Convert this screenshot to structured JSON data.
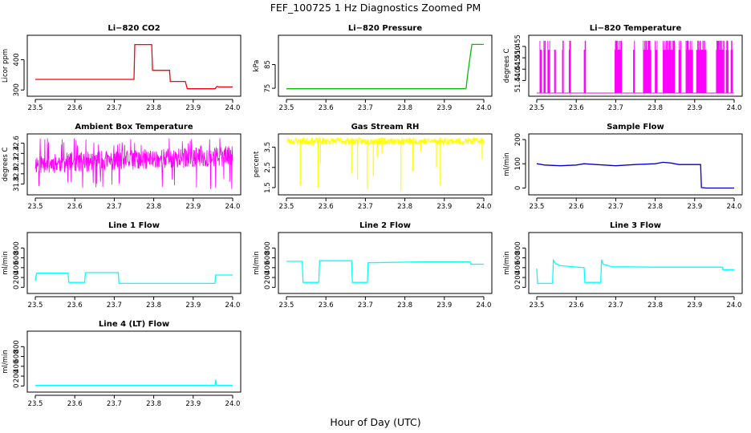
{
  "figure": {
    "title": "FEF_100725  1 Hz Diagnostics Zoomed PM",
    "xlabel": "Hour of Day (UTC)"
  },
  "chart_data": [
    {
      "type": "line",
      "title": "Li−820 CO2",
      "ylabel": "Licor ppm",
      "color": "#ff0000",
      "xlim": [
        23.5,
        24.0
      ],
      "ylim": [
        290,
        470
      ],
      "xticks": [
        "23.5",
        "23.6",
        "23.7",
        "23.8",
        "23.9",
        "24.0"
      ],
      "yticks": [
        300,
        400
      ],
      "series": [
        {
          "name": "CO2",
          "x": [
            23.5,
            23.75,
            23.752,
            23.795,
            23.797,
            23.84,
            23.842,
            23.88,
            23.885,
            23.955,
            23.958,
            23.96,
            23.965,
            24.0
          ],
          "y": [
            335,
            335,
            450,
            450,
            365,
            365,
            328,
            328,
            304,
            304,
            308,
            312,
            310,
            310
          ]
        }
      ]
    },
    {
      "type": "line",
      "title": "Li−820 Pressure",
      "ylabel": "kPa",
      "color": "#00c000",
      "xlim": [
        23.5,
        24.0
      ],
      "ylim": [
        73,
        96
      ],
      "xticks": [
        "23.5",
        "23.6",
        "23.7",
        "23.8",
        "23.9",
        "24.0"
      ],
      "yticks": [
        75,
        85
      ],
      "series": [
        {
          "name": "Pressure",
          "x": [
            23.5,
            23.95,
            23.955,
            23.96,
            23.965,
            23.97,
            24.0
          ],
          "y": [
            74.8,
            74.8,
            75,
            82,
            88,
            93.5,
            93.5
          ]
        }
      ]
    },
    {
      "type": "line",
      "title": "Li−820 Temperature",
      "ylabel": "degrees C",
      "color": "#ff00ff",
      "xlim": [
        23.5,
        24.0
      ],
      "ylim": [
        51.4345,
        51.4585
      ],
      "xticks": [
        "23.5",
        "23.6",
        "23.7",
        "23.8",
        "23.9",
        "24.0"
      ],
      "yticks": [
        51.44,
        51.445,
        51.45,
        51.455
      ],
      "ytick_labels": [
        "51.440",
        "51.445",
        "51.450",
        "51.455"
      ],
      "low": 51.4345,
      "high": 51.4575,
      "high_ranges": [
        [
          23.508,
          23.512
        ],
        [
          23.518,
          23.522
        ],
        [
          23.528,
          23.534
        ],
        [
          23.545,
          23.548
        ],
        [
          23.565,
          23.568
        ],
        [
          23.582,
          23.586
        ],
        [
          23.62,
          23.624
        ],
        [
          23.698,
          23.715
        ],
        [
          23.745,
          23.748
        ],
        [
          23.77,
          23.79
        ],
        [
          23.8,
          23.805
        ],
        [
          23.82,
          23.85
        ],
        [
          23.86,
          23.865
        ],
        [
          23.878,
          23.895
        ],
        [
          23.905,
          23.93
        ],
        [
          23.955,
          23.975
        ],
        [
          23.98,
          23.985
        ],
        [
          23.992,
          23.996
        ]
      ]
    },
    {
      "type": "line",
      "title": "Ambient Box Temperature",
      "ylabel": "degrees C",
      "color": "#ff00ff",
      "xlim": [
        23.5,
        24.0
      ],
      "ylim": [
        31.65,
        32.72
      ],
      "xticks": [
        "23.5",
        "23.6",
        "23.7",
        "23.8",
        "23.9",
        "24.0"
      ],
      "yticks": [
        31.8,
        32.0,
        32.2,
        32.4,
        32.6
      ],
      "ytick_labels": [
        "31.8",
        "32.0",
        "32.2",
        "32.4",
        "32.6"
      ],
      "noise": {
        "base_start": 32.2,
        "base_end": 32.35,
        "amp": 0.2,
        "spikes_low": 31.7,
        "spikes_high": 32.7
      }
    },
    {
      "type": "line",
      "title": "Gas Stream RH",
      "ylabel": "percent",
      "color": "#ffff00",
      "xlim": [
        23.5,
        24.0
      ],
      "ylim": [
        1.3,
        4.0
      ],
      "xticks": [
        "23.5",
        "23.6",
        "23.7",
        "23.8",
        "23.9",
        "24.0"
      ],
      "yticks": [
        1.5,
        2.5,
        3.5
      ],
      "ytick_labels": [
        "1.5",
        "2.5",
        "3.5"
      ],
      "base": 3.8,
      "dips": [
        [
          23.535,
          1.6
        ],
        [
          23.58,
          1.5
        ],
        [
          23.586,
          2.7
        ],
        [
          23.665,
          2.2
        ],
        [
          23.68,
          1.9
        ],
        [
          23.705,
          1.4
        ],
        [
          23.72,
          2.1
        ],
        [
          23.73,
          3.0
        ],
        [
          23.742,
          3.2
        ],
        [
          23.79,
          1.35
        ],
        [
          23.82,
          2.3
        ],
        [
          23.84,
          3.3
        ],
        [
          23.88,
          2.5
        ],
        [
          23.89,
          1.6
        ],
        [
          23.996,
          2.9
        ]
      ]
    },
    {
      "type": "line",
      "title": "Sample Flow",
      "ylabel": "ml/min",
      "color": "#0000c8",
      "xlim": [
        23.5,
        24.0
      ],
      "ylim": [
        -15,
        210
      ],
      "xticks": [
        "23.5",
        "23.6",
        "23.7",
        "23.8",
        "23.9",
        "24.0"
      ],
      "yticks": [
        0,
        100,
        200
      ],
      "series": [
        {
          "name": "Sample Flow",
          "x": [
            23.5,
            23.52,
            23.56,
            23.6,
            23.62,
            23.65,
            23.7,
            23.75,
            23.8,
            23.82,
            23.84,
            23.86,
            23.915,
            23.917,
            23.93,
            24.0
          ],
          "y": [
            100,
            95,
            92,
            95,
            100,
            97,
            92,
            97,
            100,
            106,
            103,
            97,
            97,
            2,
            0,
            0
          ]
        }
      ]
    },
    {
      "type": "line",
      "title": "Line 1 Flow",
      "ylabel": "ml/min",
      "color": "#00ffff",
      "xlim": [
        23.5,
        24.0
      ],
      "ylim": [
        -60,
        1050
      ],
      "xticks": [
        "23.5",
        "23.6",
        "23.7",
        "23.8",
        "23.9",
        "24.0"
      ],
      "yticks": [
        0,
        200,
        400,
        600,
        800
      ],
      "series": [
        {
          "name": "Line 1",
          "x": [
            23.5,
            23.503,
            23.583,
            23.585,
            23.625,
            23.627,
            23.71,
            23.712,
            23.955,
            23.957,
            24.0
          ],
          "y": [
            130,
            290,
            290,
            100,
            100,
            300,
            300,
            80,
            80,
            250,
            250
          ]
        }
      ]
    },
    {
      "type": "line",
      "title": "Line 2 Flow",
      "ylabel": "ml/min",
      "color": "#00ffff",
      "xlim": [
        23.5,
        24.0
      ],
      "ylim": [
        -60,
        1050
      ],
      "xticks": [
        "23.5",
        "23.6",
        "23.7",
        "23.8",
        "23.9",
        "24.0"
      ],
      "yticks": [
        0,
        200,
        400,
        600,
        800
      ],
      "series": [
        {
          "name": "Line 2",
          "x": [
            23.5,
            23.54,
            23.542,
            23.582,
            23.584,
            23.665,
            23.667,
            23.705,
            23.707,
            23.85,
            23.965,
            23.967,
            24.0
          ],
          "y": [
            530,
            530,
            100,
            100,
            540,
            540,
            100,
            100,
            500,
            520,
            520,
            470,
            470
          ]
        }
      ]
    },
    {
      "type": "line",
      "title": "Line 3 Flow",
      "ylabel": "ml/min",
      "color": "#00ffff",
      "xlim": [
        23.5,
        24.0
      ],
      "ylim": [
        -60,
        1050
      ],
      "xticks": [
        "23.5",
        "23.6",
        "23.7",
        "23.8",
        "23.9",
        "24.0"
      ],
      "yticks": [
        0,
        200,
        400,
        600,
        800
      ],
      "series": [
        {
          "name": "Line 3",
          "x": [
            23.5,
            23.502,
            23.504,
            23.54,
            23.542,
            23.548,
            23.56,
            23.62,
            23.622,
            23.662,
            23.664,
            23.668,
            23.69,
            23.8,
            23.97,
            23.972,
            24.0
          ],
          "y": [
            380,
            80,
            80,
            80,
            550,
            480,
            440,
            400,
            100,
            100,
            560,
            470,
            420,
            410,
            410,
            360,
            360
          ]
        }
      ]
    },
    {
      "type": "line",
      "title": "Line 4 (LT) Flow",
      "ylabel": "ml/min",
      "color": "#00ffff",
      "xlim": [
        23.5,
        24.0
      ],
      "ylim": [
        -60,
        1050
      ],
      "xticks": [
        "23.5",
        "23.6",
        "23.7",
        "23.8",
        "23.9",
        "24.0"
      ],
      "yticks": [
        0,
        200,
        400,
        600,
        800
      ],
      "series": [
        {
          "name": "Line 4",
          "x": [
            23.5,
            23.955,
            23.957,
            23.959,
            23.961,
            24.0
          ],
          "y": [
            10,
            10,
            130,
            20,
            10,
            10
          ]
        }
      ]
    }
  ]
}
